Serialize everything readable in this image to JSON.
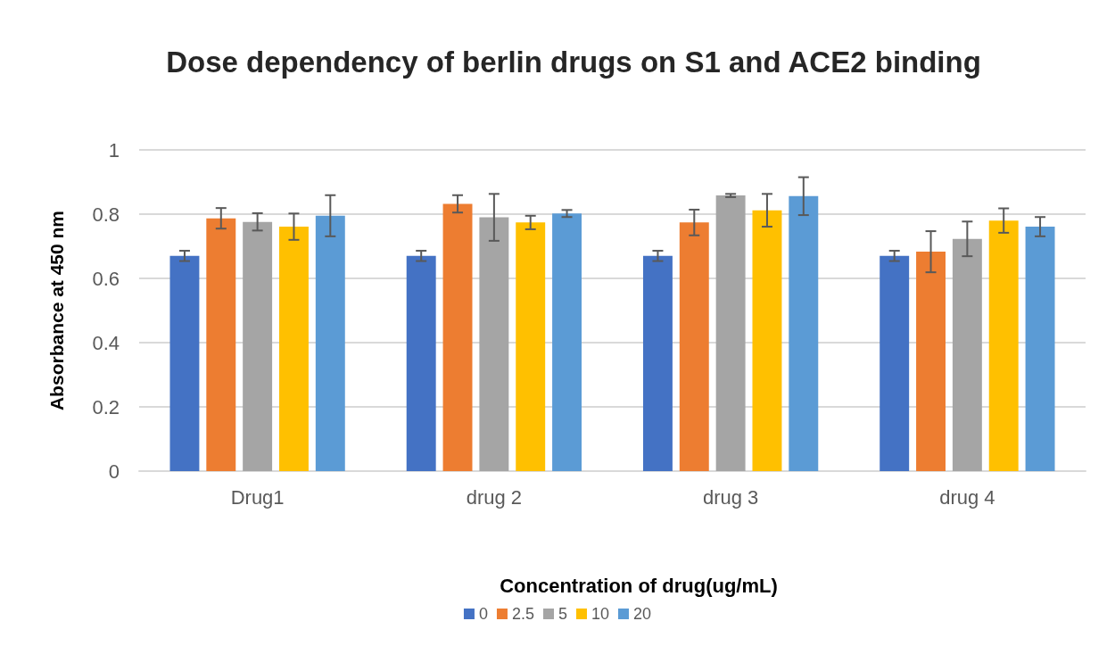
{
  "chart_data": {
    "type": "bar",
    "title": "Dose dependency of berlin drugs on S1 and ACE2 binding",
    "ylabel": "Absorbance at 450 nm",
    "legend_title": "Concentration of drug(ug/mL)",
    "categories": [
      "Drug1",
      "drug 2",
      "drug 3",
      "drug 4"
    ],
    "series": [
      {
        "name": "0",
        "color": "#4472c4",
        "values": [
          0.67,
          0.67,
          0.67,
          0.67
        ],
        "errors": [
          0.016,
          0.016,
          0.016,
          0.016
        ]
      },
      {
        "name": "2.5",
        "color": "#ed7d31",
        "values": [
          0.787,
          0.832,
          0.774,
          0.683
        ],
        "errors": [
          0.032,
          0.027,
          0.04,
          0.064
        ]
      },
      {
        "name": "5",
        "color": "#a5a5a5",
        "values": [
          0.776,
          0.79,
          0.858,
          0.723
        ],
        "errors": [
          0.027,
          0.073,
          0.005,
          0.054
        ]
      },
      {
        "name": "10",
        "color": "#ffc000",
        "values": [
          0.761,
          0.774,
          0.812,
          0.78
        ],
        "errors": [
          0.041,
          0.021,
          0.051,
          0.038
        ]
      },
      {
        "name": "20",
        "color": "#5b9bd5",
        "values": [
          0.795,
          0.802,
          0.856,
          0.761
        ],
        "errors": [
          0.064,
          0.011,
          0.059,
          0.03
        ]
      }
    ],
    "ylim": [
      0,
      1
    ],
    "yticks": [
      0,
      0.2,
      0.4,
      0.6,
      0.8,
      1
    ],
    "grid": "y",
    "legend": "bottom"
  }
}
